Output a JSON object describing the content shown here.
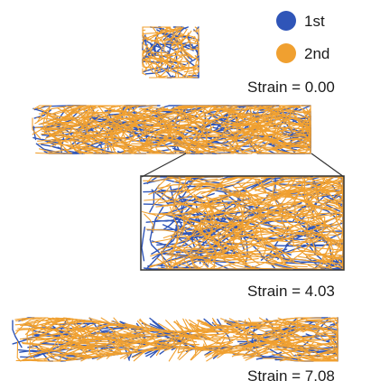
{
  "legend": {
    "items": [
      {
        "label": "1st",
        "color": "#2f55b8"
      },
      {
        "label": "2nd",
        "color": "#f0a030"
      }
    ]
  },
  "panels": [
    {
      "strain_label": "Strain = 0.00"
    },
    {
      "strain_label": "Strain = 4.03"
    },
    {
      "strain_label": "Strain = 7.08"
    }
  ],
  "colors": {
    "network_first": "#2f55b8",
    "network_second": "#f0a030",
    "inset_border": "#333333"
  }
}
